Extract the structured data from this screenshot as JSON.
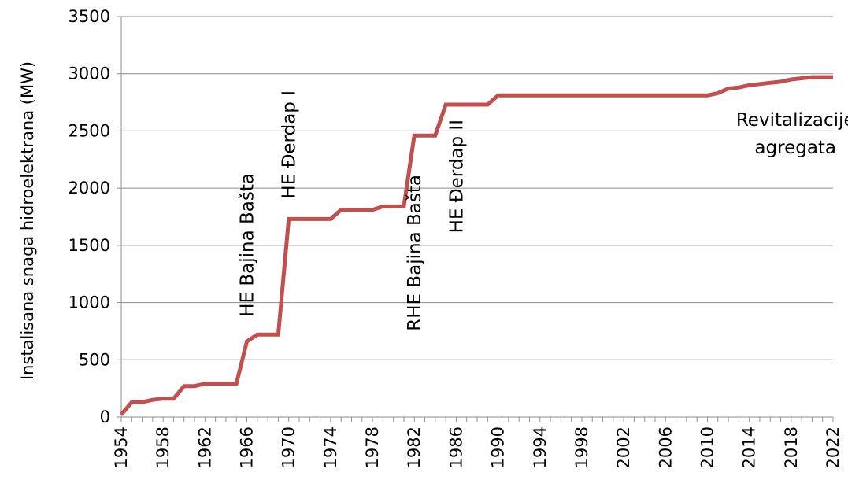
{
  "chart_data": {
    "type": "line",
    "ylabel": "Instalisana snaga hidroelektrana (MW)",
    "xlabel": "",
    "ylim": [
      0,
      3500
    ],
    "xlim": [
      1954,
      2022
    ],
    "y_ticks": [
      0,
      500,
      1000,
      1500,
      2000,
      2500,
      3000,
      3500
    ],
    "x_tick_labels": [
      "1954",
      "1958",
      "1962",
      "1966",
      "1970",
      "1974",
      "1978",
      "1982",
      "1986",
      "1990",
      "1994",
      "1998",
      "2002",
      "2006",
      "2010",
      "2014",
      "2018",
      "2022"
    ],
    "grid": "horizontal",
    "series": [
      {
        "color": "#c0504d",
        "x": [
          1954,
          1955,
          1956,
          1957,
          1958,
          1959,
          1960,
          1961,
          1962,
          1963,
          1964,
          1965,
          1966,
          1967,
          1968,
          1969,
          1970,
          1971,
          1972,
          1973,
          1974,
          1975,
          1976,
          1977,
          1978,
          1979,
          1980,
          1981,
          1982,
          1983,
          1984,
          1985,
          1986,
          1987,
          1988,
          1989,
          1990,
          1991,
          1992,
          1993,
          1994,
          1995,
          1996,
          1997,
          1998,
          1999,
          2000,
          2001,
          2002,
          2003,
          2004,
          2005,
          2006,
          2007,
          2008,
          2009,
          2010,
          2011,
          2012,
          2013,
          2014,
          2015,
          2016,
          2017,
          2018,
          2019,
          2020,
          2021,
          2022
        ],
        "values": [
          20,
          130,
          130,
          150,
          160,
          160,
          270,
          270,
          290,
          290,
          290,
          290,
          660,
          720,
          720,
          720,
          1730,
          1730,
          1730,
          1730,
          1730,
          1810,
          1810,
          1810,
          1810,
          1840,
          1840,
          1840,
          2460,
          2460,
          2460,
          2730,
          2730,
          2730,
          2730,
          2730,
          2810,
          2810,
          2810,
          2810,
          2810,
          2810,
          2810,
          2810,
          2810,
          2810,
          2810,
          2810,
          2810,
          2810,
          2810,
          2810,
          2810,
          2810,
          2810,
          2810,
          2810,
          2830,
          2870,
          2880,
          2900,
          2910,
          2920,
          2930,
          2950,
          2960,
          2970,
          2970,
          2970
        ]
      }
    ],
    "annotations": [
      {
        "text": "HE Bajina Bašta",
        "x": 1966,
        "orientation": "vertical"
      },
      {
        "text": "HE Đerdap I",
        "x": 1970,
        "orientation": "vertical"
      },
      {
        "text": "RHE Bajina Bašta",
        "x": 1982,
        "orientation": "vertical"
      },
      {
        "text": "HE Đerdap II",
        "x": 1986,
        "orientation": "vertical"
      },
      {
        "text": "Revitalizacije agregata",
        "lines": [
          "Revitalizacije",
          "agregata"
        ],
        "x": 2016,
        "y": 2430,
        "orientation": "horizontal"
      }
    ]
  }
}
